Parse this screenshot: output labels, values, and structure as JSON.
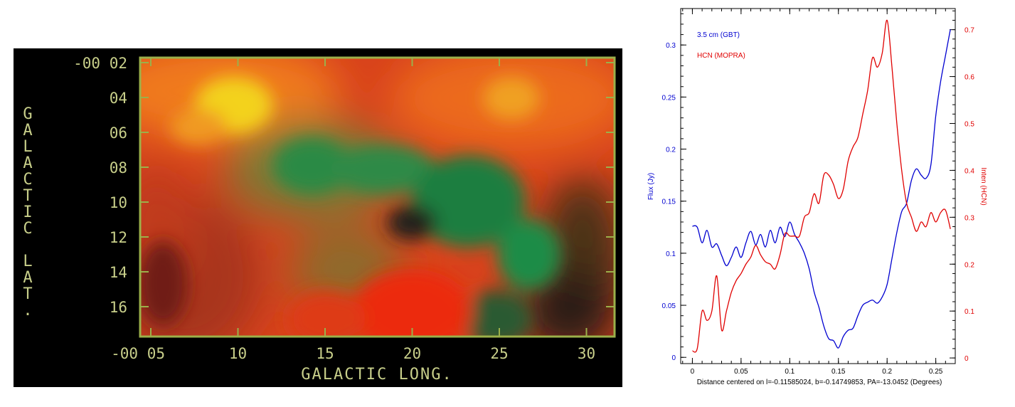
{
  "colors": {
    "map_frame": "#9bb04a",
    "map_text": "#c8cf8a",
    "series_left": "#0000d0",
    "series_right": "#e00000",
    "axis": "#000000"
  },
  "chart_data": [
    {
      "type": "heatmap",
      "title": "",
      "xlabel": "GALACTIC LONG.",
      "ylabel": "GALACTIC LAT.",
      "x_ticks": [
        "-00 05",
        "10",
        "15",
        "20",
        "25",
        "30"
      ],
      "y_ticks": [
        "-00 02",
        "04",
        "06",
        "08",
        "10",
        "12",
        "14",
        "16"
      ],
      "legend": "none"
    },
    {
      "type": "line",
      "title": "",
      "xlabel": "Distance centered on l=-0.11585024, b=-0.14749853, PA=-13.0452  (Degrees)",
      "ylabel_left": "Flux (Jy)",
      "ylabel_right": "Inten (HCN)",
      "xlim": [
        -0.012,
        0.27
      ],
      "ylim_left": [
        -0.006,
        0.335
      ],
      "ylim_right": [
        -0.012,
        0.745
      ],
      "x_ticks": [
        0,
        0.05,
        0.1,
        0.15,
        0.2,
        0.25
      ],
      "x_tick_labels": [
        "0",
        "0.05",
        "0.1",
        "0.15",
        "0.2",
        "0.25"
      ],
      "y_ticks_left": [
        0,
        0.05,
        0.1,
        0.15,
        0.2,
        0.25,
        0.3
      ],
      "y_tick_labels_left": [
        "0",
        "0.05",
        "0.1",
        "0.15",
        "0.2",
        "0.25",
        "0.3"
      ],
      "y_ticks_right": [
        0,
        0.1,
        0.2,
        0.3,
        0.4,
        0.5,
        0.6,
        0.7
      ],
      "y_tick_labels_right": [
        "0",
        "0.1",
        "0.2",
        "0.3",
        "0.4",
        "0.5",
        "0.6",
        "0.7"
      ],
      "grid": false,
      "legend": "top-left",
      "series": [
        {
          "name": "3.5 cm (GBT)",
          "axis": "left",
          "x": [
            0,
            0.005,
            0.01,
            0.015,
            0.02,
            0.025,
            0.03,
            0.035,
            0.04,
            0.045,
            0.05,
            0.055,
            0.06,
            0.065,
            0.07,
            0.075,
            0.08,
            0.085,
            0.09,
            0.095,
            0.1,
            0.105,
            0.11,
            0.115,
            0.12,
            0.125,
            0.13,
            0.135,
            0.14,
            0.145,
            0.15,
            0.155,
            0.16,
            0.165,
            0.17,
            0.175,
            0.18,
            0.185,
            0.19,
            0.195,
            0.2,
            0.205,
            0.21,
            0.215,
            0.22,
            0.225,
            0.23,
            0.235,
            0.24,
            0.245,
            0.25,
            0.255,
            0.26,
            0.265
          ],
          "y": [
            0.126,
            0.125,
            0.11,
            0.122,
            0.106,
            0.109,
            0.098,
            0.088,
            0.096,
            0.106,
            0.096,
            0.11,
            0.121,
            0.108,
            0.118,
            0.106,
            0.122,
            0.11,
            0.125,
            0.116,
            0.13,
            0.118,
            0.11,
            0.1,
            0.085,
            0.063,
            0.048,
            0.03,
            0.018,
            0.016,
            0.009,
            0.02,
            0.026,
            0.028,
            0.04,
            0.05,
            0.053,
            0.055,
            0.052,
            0.058,
            0.07,
            0.095,
            0.12,
            0.14,
            0.148,
            0.17,
            0.181,
            0.175,
            0.172,
            0.185,
            0.232,
            0.265,
            0.29,
            0.315
          ]
        },
        {
          "name": "HCN (MOPRA)",
          "axis": "right",
          "x": [
            0,
            0.005,
            0.01,
            0.015,
            0.02,
            0.025,
            0.03,
            0.035,
            0.04,
            0.045,
            0.05,
            0.055,
            0.06,
            0.065,
            0.07,
            0.075,
            0.08,
            0.085,
            0.09,
            0.095,
            0.1,
            0.105,
            0.11,
            0.115,
            0.12,
            0.125,
            0.13,
            0.135,
            0.14,
            0.145,
            0.15,
            0.155,
            0.16,
            0.165,
            0.17,
            0.175,
            0.18,
            0.185,
            0.19,
            0.195,
            0.2,
            0.205,
            0.21,
            0.215,
            0.22,
            0.225,
            0.23,
            0.235,
            0.24,
            0.245,
            0.25,
            0.255,
            0.26,
            0.265
          ],
          "y": [
            0.015,
            0.02,
            0.1,
            0.08,
            0.1,
            0.175,
            0.06,
            0.1,
            0.14,
            0.165,
            0.18,
            0.2,
            0.215,
            0.24,
            0.22,
            0.205,
            0.2,
            0.19,
            0.22,
            0.265,
            0.26,
            0.26,
            0.26,
            0.3,
            0.31,
            0.35,
            0.33,
            0.39,
            0.39,
            0.37,
            0.34,
            0.36,
            0.42,
            0.45,
            0.47,
            0.52,
            0.57,
            0.64,
            0.62,
            0.65,
            0.72,
            0.62,
            0.5,
            0.4,
            0.33,
            0.3,
            0.27,
            0.29,
            0.28,
            0.31,
            0.29,
            0.31,
            0.315,
            0.275
          ]
        }
      ]
    }
  ]
}
